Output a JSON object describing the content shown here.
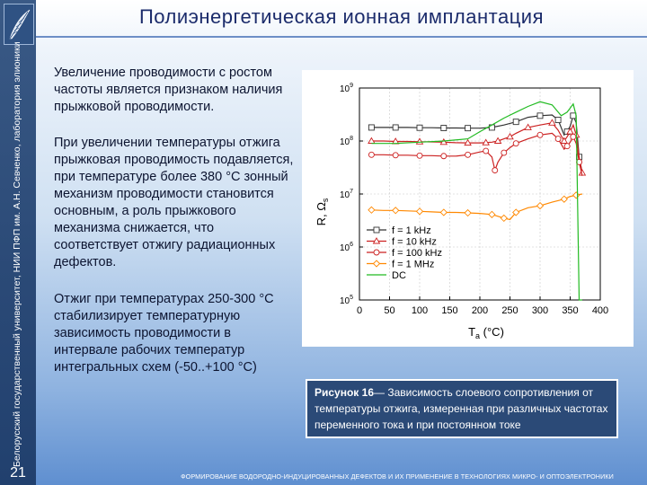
{
  "title": "Полиэнергетическая ионная имплантация",
  "sidebar": {
    "vertical_text": "Белорусский государственный университет, НИИ ПФП им. А.Н. Севченко, лаборатория элионики",
    "page_number": "21"
  },
  "paragraphs": [
    "Увеличение проводимости с ростом частоты является признаком наличия прыжковой проводимости.",
    "При увеличении температуры отжига прыжковая проводимость подавляется, при температуре более 380 °С зонный механизм проводимости становится основным, а роль прыжкового механизма снижается, что соответствует отжигу радиационных дефектов.",
    "Отжиг при температурах 250-300 °С стабилизирует температурную зависимость проводимости в интервале рабочих температур интегральных схем (-50..+100 °С)"
  ],
  "caption": {
    "label": "Рисунок 16",
    "text": "— Зависимость слоевого сопротивления от температуры отжига, измеренная при различных частотах переменного тока и при постоянном токе"
  },
  "footer": "ФОРМИРОВАНИЕ ВОДОРОДНО-ИНДУЦИРОВАННЫХ ДЕФЕКТОВ И ИХ ПРИМЕНЕНИЕ В ТЕХНОЛОГИЯХ МИКРО- И ОПТОЭЛЕКТРОНИКИ",
  "chart_data": {
    "type": "line",
    "xlabel_main": "T",
    "xlabel_sub": "a",
    "xlabel_unit": " (°C)",
    "ylabel": "R, Ω",
    "ylabel_sub": "s",
    "x_ticks": [
      0,
      50,
      100,
      150,
      200,
      250,
      300,
      350,
      400
    ],
    "xlim": [
      0,
      400
    ],
    "y_log": true,
    "ylim": [
      100000,
      1000000000
    ],
    "y_ticks": [
      {
        "base": "10",
        "exp": "9",
        "value": 1000000000
      },
      {
        "base": "10",
        "exp": "8",
        "value": 100000000
      },
      {
        "base": "10",
        "exp": "7",
        "value": 10000000
      },
      {
        "base": "10",
        "exp": "6",
        "value": 1000000
      },
      {
        "base": "10",
        "exp": "5",
        "value": 100000
      }
    ],
    "series": [
      {
        "name": "f = 1 kHz",
        "color": "#333333",
        "marker": "square",
        "x": [
          20,
          40,
          60,
          80,
          100,
          120,
          140,
          160,
          180,
          200,
          220,
          240,
          260,
          280,
          300,
          320,
          330,
          340,
          345,
          350,
          355,
          360,
          365,
          370
        ],
        "y": [
          180000000,
          180000000,
          180000000,
          180000000,
          178000000,
          178000000,
          176000000,
          176000000,
          175000000,
          175000000,
          180000000,
          200000000,
          230000000,
          280000000,
          300000000,
          310000000,
          250000000,
          130000000,
          150000000,
          190000000,
          300000000,
          220000000,
          50000000,
          25000000
        ]
      },
      {
        "name": "f = 10 kHz",
        "color": "#cc2222",
        "marker": "triangle",
        "x": [
          20,
          40,
          60,
          80,
          100,
          120,
          140,
          160,
          180,
          200,
          210,
          220,
          230,
          240,
          250,
          260,
          280,
          300,
          320,
          330,
          340,
          345,
          350,
          355,
          360,
          365,
          370
        ],
        "y": [
          100000000,
          100000000,
          98000000,
          98000000,
          97000000,
          96000000,
          95000000,
          93000000,
          92000000,
          92000000,
          93000000,
          95000000,
          100000000,
          110000000,
          120000000,
          140000000,
          180000000,
          200000000,
          220000000,
          160000000,
          100000000,
          120000000,
          150000000,
          200000000,
          130000000,
          50000000,
          25000000
        ]
      },
      {
        "name": "f = 100 kHz",
        "color": "#cc2222",
        "marker": "circle",
        "x": [
          20,
          40,
          60,
          80,
          100,
          120,
          140,
          160,
          180,
          200,
          210,
          220,
          225,
          230,
          240,
          250,
          260,
          280,
          300,
          320,
          330,
          340,
          345,
          350,
          355,
          360,
          365,
          370
        ],
        "y": [
          55000000,
          55000000,
          54000000,
          54000000,
          53000000,
          53000000,
          52000000,
          52000000,
          55000000,
          62000000,
          65000000,
          50000000,
          28000000,
          40000000,
          60000000,
          75000000,
          90000000,
          110000000,
          130000000,
          140000000,
          110000000,
          70000000,
          80000000,
          95000000,
          120000000,
          90000000,
          40000000,
          22000000
        ]
      },
      {
        "name": "f = 1 MHz",
        "color": "#ff8800",
        "marker": "diamond",
        "x": [
          20,
          40,
          60,
          80,
          100,
          120,
          140,
          160,
          180,
          200,
          220,
          230,
          240,
          250,
          260,
          280,
          300,
          320,
          340,
          350,
          360,
          370
        ],
        "y": [
          5000000,
          4900000,
          4900000,
          4800000,
          4700000,
          4600000,
          4500000,
          4500000,
          4400000,
          4300000,
          4100000,
          3800000,
          3500000,
          3300000,
          4500000,
          5500000,
          6000000,
          7000000,
          8000000,
          9000000,
          9500000,
          10000000
        ]
      },
      {
        "name": "DC",
        "color": "#22bb22",
        "marker": "none",
        "x": [
          20,
          60,
          100,
          140,
          180,
          200,
          220,
          240,
          260,
          280,
          300,
          320,
          335,
          345,
          355,
          360,
          365,
          370
        ],
        "y": [
          90000000,
          90000000,
          95000000,
          100000000,
          110000000,
          150000000,
          200000000,
          270000000,
          350000000,
          450000000,
          550000000,
          480000000,
          300000000,
          350000000,
          500000000,
          300000000,
          100000,
          100000
        ]
      }
    ]
  }
}
